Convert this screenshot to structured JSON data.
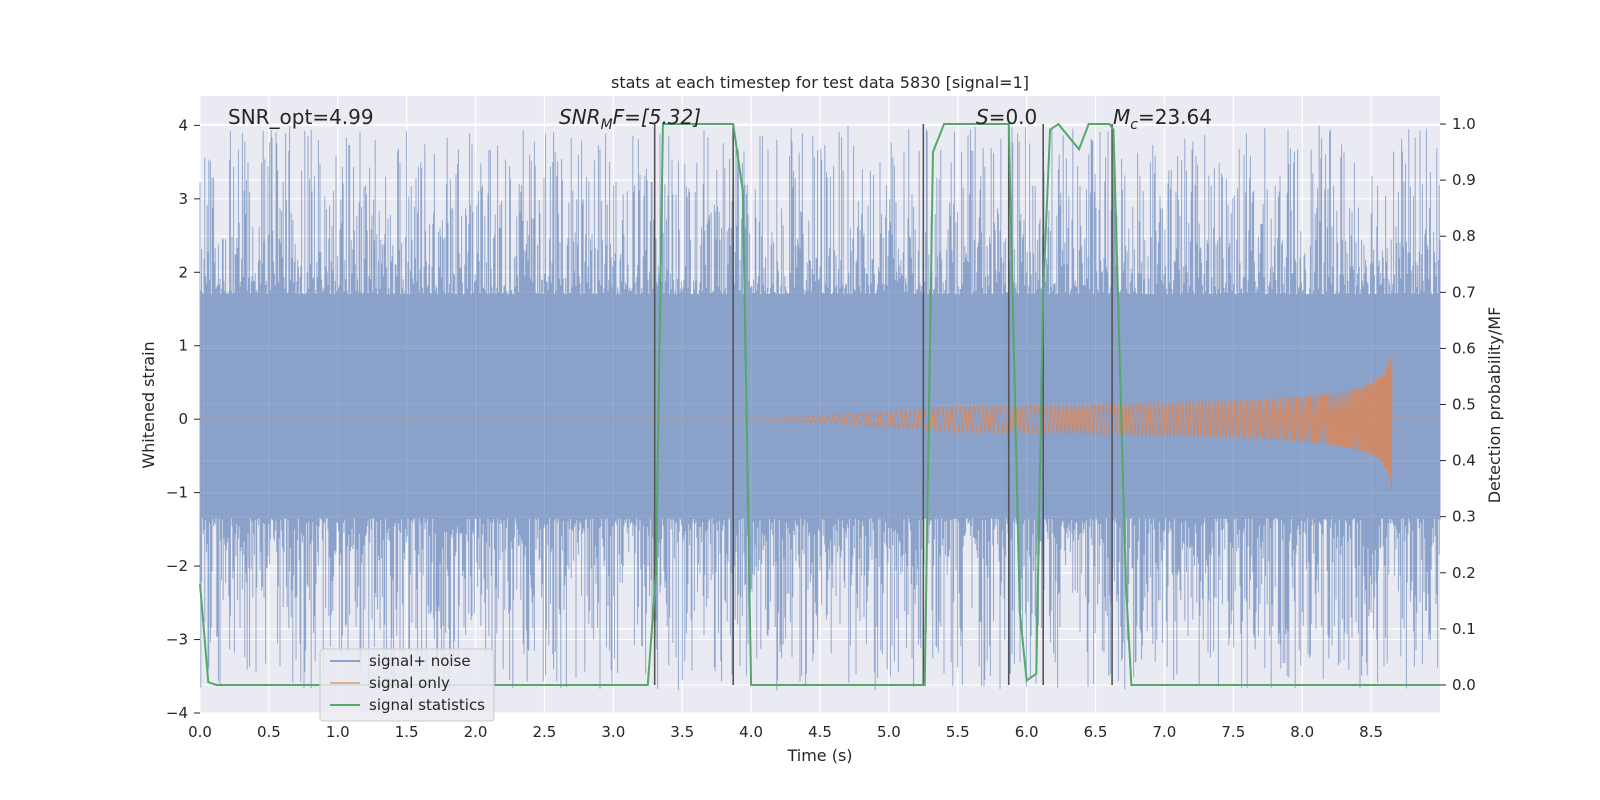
{
  "chart_data": {
    "type": "line",
    "title": "stats at each timestep for test data 5830 [signal=1]",
    "xlabel": "Time (s)",
    "ylabel_left": "Whitened strain",
    "ylabel_right": "Detection probability/MF",
    "xlim": [
      0.0,
      9.0
    ],
    "ylim_left": [
      -4.0,
      4.4
    ],
    "ylim_right": [
      -0.05,
      1.05
    ],
    "x_ticks": [
      0.0,
      0.5,
      1.0,
      1.5,
      2.0,
      2.5,
      3.0,
      3.5,
      4.0,
      4.5,
      5.0,
      5.5,
      6.0,
      6.5,
      7.0,
      7.5,
      8.0,
      8.5
    ],
    "x_tick_labels": [
      "0.0",
      "0.5",
      "1.0",
      "1.5",
      "2.0",
      "2.5",
      "3.0",
      "3.5",
      "4.0",
      "4.5",
      "5.0",
      "5.5",
      "6.0",
      "6.5",
      "7.0",
      "7.5",
      "8.0",
      "8.5"
    ],
    "y_left_ticks": [
      4,
      3,
      2,
      1,
      0,
      -1,
      -2,
      -3,
      -4
    ],
    "y_left_tick_labels": [
      "4",
      "3",
      "2",
      "1",
      "0",
      "−1",
      "−2",
      "−3",
      "−4"
    ],
    "y_right_ticks": [
      1.0,
      0.9,
      0.8,
      0.7,
      0.6,
      0.5,
      0.4,
      0.3,
      0.2,
      0.1,
      0.0
    ],
    "y_right_tick_labels": [
      "1.0",
      "0.9",
      "0.8",
      "0.7",
      "0.6",
      "0.5",
      "0.4",
      "0.3",
      "0.2",
      "0.1",
      "0.0"
    ],
    "grid": true,
    "legend_position": "lower-left",
    "legend": [
      "signal+ noise",
      "signal only",
      "signal statistics"
    ],
    "colors": {
      "noise": "#4c72b0",
      "signal": "#dd8452",
      "stats": "#55a868",
      "vlines": "#555555",
      "plot_bg": "#eaeaf2",
      "grid": "#ffffff"
    },
    "annotations": {
      "snr_opt": "SNR_opt=4.99",
      "snr_mf_symbol": "SNR",
      "snr_mf_sub": "M",
      "snr_mf_rest": "F=[5.32]",
      "s_symbol": "S",
      "s_rest": "=0.0",
      "mc_symbol": "M",
      "mc_sub": "c",
      "mc_rest": "=23.64"
    },
    "vertical_lines_x": [
      3.3,
      3.87,
      5.25,
      5.87,
      6.12,
      6.62
    ],
    "noise_band": {
      "core_min": -1.35,
      "core_max": 1.7,
      "peak_min": -3.7,
      "peak_max": 4.0
    },
    "signal_series": {
      "t_start": 4.0,
      "t_merger": 8.65,
      "peak_amplitude": 1.05
    },
    "stats_series": {
      "x": [
        0.0,
        0.06,
        0.12,
        0.7,
        1.0,
        1.5,
        2.0,
        2.5,
        3.0,
        3.25,
        3.31,
        3.36,
        3.5,
        3.87,
        3.94,
        4.0,
        4.3,
        4.8,
        5.2,
        5.26,
        5.32,
        5.4,
        5.6,
        5.87,
        5.95,
        6.0,
        6.07,
        6.12,
        6.17,
        6.23,
        6.38,
        6.45,
        6.6,
        6.63,
        6.72,
        6.76,
        7.0,
        8.0,
        9.0
      ],
      "y": [
        0.18,
        0.005,
        0.0,
        0.0,
        0.0,
        0.0,
        0.0,
        0.0,
        0.0,
        0.0,
        0.2,
        1.0,
        1.0,
        1.0,
        0.88,
        0.0,
        0.0,
        0.0,
        0.0,
        0.0,
        0.95,
        1.0,
        1.0,
        1.0,
        0.13,
        0.008,
        0.02,
        0.7,
        0.99,
        1.0,
        0.955,
        1.0,
        1.0,
        0.99,
        0.18,
        0.0,
        0.0,
        0.0,
        0.0
      ]
    }
  }
}
